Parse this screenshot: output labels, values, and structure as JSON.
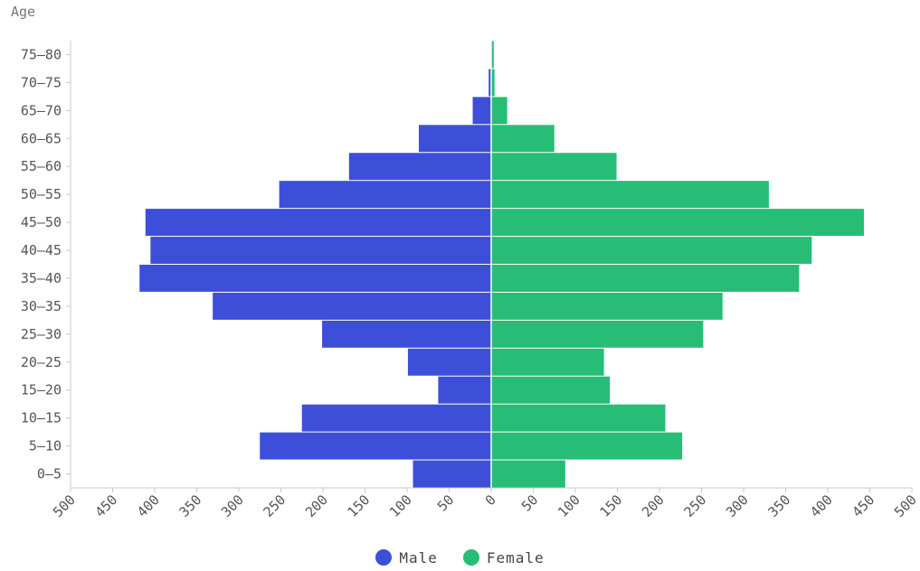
{
  "chart_data": {
    "type": "bar",
    "orientation": "horizontal",
    "layout": "population-pyramid",
    "ylabel": "Age",
    "categories": [
      "0-5",
      "5-10",
      "10-15",
      "15-20",
      "20-25",
      "25-30",
      "30-35",
      "35-40",
      "40-45",
      "45-50",
      "50-55",
      "55-60",
      "60-65",
      "65-70",
      "70-75",
      "75-80"
    ],
    "category_tick_labels": [
      "0–5",
      "5–10",
      "10–15",
      "15–20",
      "20–25",
      "25–30",
      "30–35",
      "35–40",
      "40–45",
      "45–50",
      "50–55",
      "55–60",
      "60–65",
      "65–70",
      "70–75",
      "75–80"
    ],
    "series": [
      {
        "name": "Male",
        "color": "#3d4fd8",
        "direction": "left",
        "values": [
          93,
          275,
          225,
          63,
          99,
          201,
          331,
          418,
          405,
          411,
          252,
          169,
          86,
          22,
          3,
          0
        ]
      },
      {
        "name": "Female",
        "color": "#27bd77",
        "direction": "right",
        "values": [
          88,
          227,
          207,
          141,
          134,
          252,
          275,
          366,
          381,
          443,
          330,
          149,
          75,
          19,
          4,
          3
        ]
      }
    ],
    "xlim": [
      -500,
      500
    ],
    "xticks": [
      -500,
      -450,
      -400,
      -350,
      -300,
      -250,
      -200,
      -150,
      -100,
      -50,
      0,
      50,
      100,
      150,
      200,
      250,
      300,
      350,
      400,
      450,
      500
    ],
    "xtick_labels": [
      "500",
      "450",
      "400",
      "350",
      "300",
      "250",
      "200",
      "150",
      "100",
      "50",
      "0",
      "50",
      "100",
      "150",
      "200",
      "250",
      "300",
      "350",
      "400",
      "450",
      "500"
    ],
    "grid": false,
    "legend_position": "bottom-center"
  },
  "legend": {
    "male_label": "Male",
    "female_label": "Female"
  }
}
